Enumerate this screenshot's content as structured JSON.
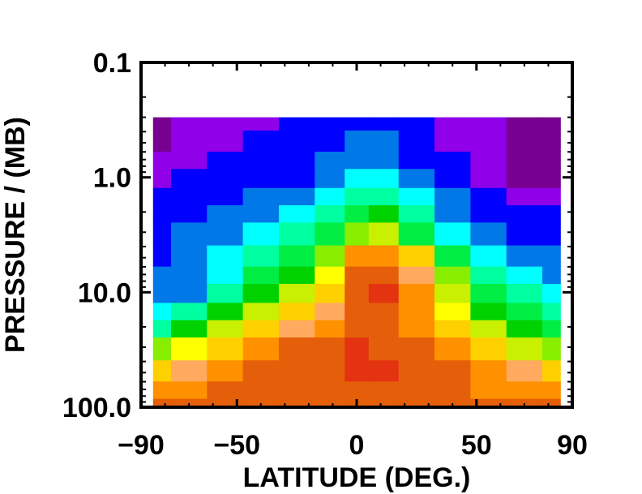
{
  "chart_data": {
    "type": "heatmap",
    "title": "",
    "xlabel": "LATITUDE (DEG.)",
    "ylabel": "PRESSURE / (MB)",
    "xlim": [
      -90,
      90
    ],
    "ylim": [
      100.0,
      0.1
    ],
    "yscale": "log",
    "grid": false,
    "x_ticks": [
      {
        "value": -90,
        "label": "−90"
      },
      {
        "value": -50,
        "label": "−50"
      },
      {
        "value": 0,
        "label": "0"
      },
      {
        "value": 50,
        "label": "50"
      },
      {
        "value": 90,
        "label": "90"
      }
    ],
    "y_ticks": [
      {
        "value": 0.1,
        "label": "0.1"
      },
      {
        "value": 1.0,
        "label": "1.0"
      },
      {
        "value": 10.0,
        "label": "10.0"
      },
      {
        "value": 100.0,
        "label": "100.0"
      }
    ],
    "data_extent": {
      "lat": [
        -85,
        85
      ],
      "pressure": [
        100.0,
        0.3
      ]
    },
    "colors": [
      "#e33310",
      "#e55f0a",
      "#ff9000",
      "#ffaa5e",
      "#ffd000",
      "#ffff00",
      "#c8f000",
      "#88ee00",
      "#00d200",
      "#00ee44",
      "#00ffa0",
      "#00ffff",
      "#0078e8",
      "#0000ff",
      "#9000e8",
      "#780090"
    ],
    "x": [
      -85,
      -70,
      -55,
      -40,
      -25,
      -10,
      0,
      10,
      25,
      40,
      55,
      70,
      85
    ],
    "y": [
      100,
      70,
      50,
      30,
      20,
      15,
      10,
      7,
      5,
      3,
      2,
      1.5,
      1,
      0.7,
      0.5,
      0.3
    ],
    "z": [
      [
        1,
        1,
        1,
        1,
        1,
        1,
        1,
        1,
        1,
        1,
        1,
        1,
        1
      ],
      [
        2,
        2,
        1,
        1,
        1,
        1,
        1,
        1,
        1,
        1,
        2,
        2,
        2
      ],
      [
        4,
        3,
        2,
        1,
        1,
        1,
        0,
        0,
        1,
        1,
        2,
        3,
        4
      ],
      [
        7,
        5,
        4,
        2,
        1,
        1,
        0,
        1,
        1,
        2,
        4,
        6,
        7
      ],
      [
        10,
        8,
        6,
        4,
        3,
        2,
        1,
        1,
        2,
        4,
        6,
        8,
        9
      ],
      [
        11,
        10,
        8,
        6,
        4,
        3,
        1,
        1,
        2,
        5,
        8,
        9,
        10
      ],
      [
        12,
        12,
        10,
        8,
        6,
        4,
        1,
        0,
        2,
        6,
        9,
        10,
        11
      ],
      [
        12,
        12,
        11,
        9,
        8,
        5,
        1,
        1,
        3,
        7,
        10,
        11,
        12
      ],
      [
        13,
        12,
        11,
        10,
        9,
        7,
        2,
        2,
        4,
        9,
        11,
        12,
        12
      ],
      [
        13,
        12,
        12,
        11,
        10,
        9,
        7,
        6,
        9,
        11,
        12,
        13,
        13
      ],
      [
        13,
        13,
        12,
        12,
        11,
        10,
        9,
        8,
        10,
        12,
        13,
        13,
        13
      ],
      [
        13,
        13,
        13,
        12,
        12,
        11,
        10,
        10,
        11,
        12,
        13,
        14,
        14
      ],
      [
        14,
        13,
        13,
        13,
        13,
        12,
        11,
        11,
        12,
        13,
        14,
        15,
        15
      ],
      [
        14,
        14,
        13,
        13,
        13,
        12,
        12,
        12,
        13,
        13,
        14,
        15,
        15
      ],
      [
        15,
        14,
        14,
        13,
        13,
        13,
        12,
        12,
        13,
        14,
        14,
        15,
        15
      ],
      [
        15,
        14,
        14,
        14,
        13,
        13,
        13,
        13,
        13,
        14,
        14,
        15,
        15
      ]
    ]
  }
}
